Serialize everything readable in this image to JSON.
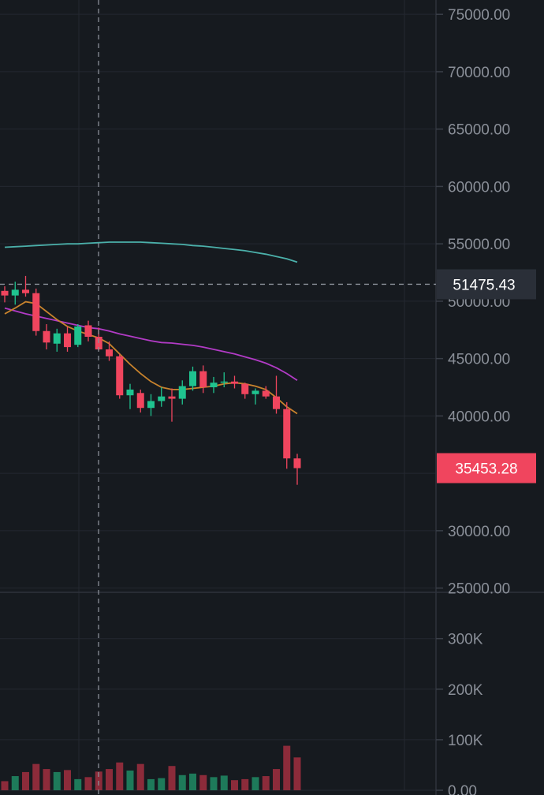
{
  "theme": {
    "background": "#161a1f",
    "grid": "#242830",
    "up": "#1fc38f",
    "down": "#f0455e",
    "up_volume": "#1e7a5a",
    "down_volume": "#8c2b3a",
    "ma_short": "#c8832d",
    "ma_mid": "#b23bc6",
    "ma_long": "#4bb0aa",
    "crosshair_tag_bg": "#2a2f38",
    "last_price_tag_bg": "#f0455e"
  },
  "chart_data": {
    "type": "candlestick",
    "price_axis": {
      "ticks": [
        "75000.00",
        "70000.00",
        "65000.00",
        "60000.00",
        "55000.00",
        "50000.00",
        "45000.00",
        "40000.00",
        "30000.00",
        "25000.00"
      ],
      "range": [
        24700,
        76250
      ]
    },
    "volume_axis": {
      "ticks": [
        "300K",
        "200K",
        "100K",
        "0.00"
      ],
      "range": [
        0,
        390000
      ]
    },
    "crosshair_price": "51475.43",
    "last_price": "35453.28",
    "candles": [
      {
        "o": 50900,
        "h": 51300,
        "l": 49900,
        "c": 50500,
        "v": 18000
      },
      {
        "o": 50500,
        "h": 51700,
        "l": 49700,
        "c": 51000,
        "v": 28000
      },
      {
        "o": 51000,
        "h": 52200,
        "l": 50400,
        "c": 50700,
        "v": 36000
      },
      {
        "o": 50700,
        "h": 51100,
        "l": 47000,
        "c": 47400,
        "v": 52000
      },
      {
        "o": 47400,
        "h": 48000,
        "l": 45800,
        "c": 46400,
        "v": 42000
      },
      {
        "o": 46300,
        "h": 47600,
        "l": 45600,
        "c": 47200,
        "v": 36000
      },
      {
        "o": 47200,
        "h": 47800,
        "l": 45600,
        "c": 46000,
        "v": 40000
      },
      {
        "o": 46200,
        "h": 48000,
        "l": 46000,
        "c": 47800,
        "v": 22000
      },
      {
        "o": 47900,
        "h": 48300,
        "l": 46500,
        "c": 46900,
        "v": 26000
      },
      {
        "o": 46900,
        "h": 47700,
        "l": 45700,
        "c": 45800,
        "v": 37000
      },
      {
        "o": 45800,
        "h": 46500,
        "l": 44800,
        "c": 45200,
        "v": 42000
      },
      {
        "o": 45200,
        "h": 45400,
        "l": 41500,
        "c": 41800,
        "v": 55000
      },
      {
        "o": 41800,
        "h": 42800,
        "l": 40600,
        "c": 42300,
        "v": 39000
      },
      {
        "o": 42000,
        "h": 42300,
        "l": 40300,
        "c": 40700,
        "v": 52000
      },
      {
        "o": 40700,
        "h": 41900,
        "l": 40000,
        "c": 41300,
        "v": 22000
      },
      {
        "o": 41300,
        "h": 42500,
        "l": 40800,
        "c": 41700,
        "v": 24000
      },
      {
        "o": 41700,
        "h": 42400,
        "l": 39500,
        "c": 41500,
        "v": 48000
      },
      {
        "o": 41500,
        "h": 43100,
        "l": 41000,
        "c": 42600,
        "v": 30000
      },
      {
        "o": 42600,
        "h": 44300,
        "l": 42200,
        "c": 43900,
        "v": 33000
      },
      {
        "o": 43900,
        "h": 44400,
        "l": 42000,
        "c": 42500,
        "v": 30000
      },
      {
        "o": 42500,
        "h": 43400,
        "l": 42000,
        "c": 42900,
        "v": 26000
      },
      {
        "o": 42900,
        "h": 43800,
        "l": 42500,
        "c": 43000,
        "v": 29000
      },
      {
        "o": 43000,
        "h": 43500,
        "l": 42400,
        "c": 42800,
        "v": 20000
      },
      {
        "o": 42800,
        "h": 42900,
        "l": 41500,
        "c": 41900,
        "v": 22000
      },
      {
        "o": 41900,
        "h": 42400,
        "l": 41000,
        "c": 42200,
        "v": 26000
      },
      {
        "o": 42200,
        "h": 42600,
        "l": 41500,
        "c": 41700,
        "v": 28000
      },
      {
        "o": 41700,
        "h": 43500,
        "l": 40200,
        "c": 40600,
        "v": 42000
      },
      {
        "o": 40600,
        "h": 41200,
        "l": 35400,
        "c": 36300,
        "v": 88000
      },
      {
        "o": 36300,
        "h": 36700,
        "l": 34000,
        "c": 35453,
        "v": 65000
      }
    ],
    "ma_short": [
      48900,
      49400,
      49950,
      49800,
      49100,
      48400,
      47800,
      47400,
      47100,
      46800,
      46300,
      45400,
      44500,
      43700,
      43000,
      42500,
      42300,
      42300,
      42400,
      42500,
      42600,
      42800,
      42900,
      42800,
      42600,
      42300,
      41600,
      40800,
      40200
    ],
    "ma_mid": [
      49400,
      49150,
      48900,
      48700,
      48500,
      48300,
      48100,
      47900,
      47700,
      47600,
      47400,
      47150,
      46950,
      46750,
      46550,
      46400,
      46350,
      46250,
      46150,
      46000,
      45800,
      45600,
      45400,
      45150,
      44900,
      44600,
      44200,
      43700,
      43100
    ],
    "ma_long": [
      54700,
      54750,
      54800,
      54850,
      54900,
      54950,
      55000,
      55000,
      55050,
      55100,
      55150,
      55150,
      55150,
      55150,
      55100,
      55050,
      55000,
      54950,
      54850,
      54800,
      54700,
      54600,
      54500,
      54400,
      54250,
      54100,
      53900,
      53700,
      53400
    ]
  }
}
